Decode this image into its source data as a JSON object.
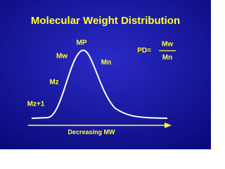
{
  "title": "Molecular Weight Distribution",
  "peak_labels": {
    "mp": "MP",
    "mw": "Mw",
    "mn": "Mn",
    "mz": "Mz",
    "mz1": "Mz+1"
  },
  "formula": {
    "lhs": "PD=",
    "numerator": "Mw",
    "denominator": "Mn"
  },
  "axis_label": "Decreasing MW"
}
